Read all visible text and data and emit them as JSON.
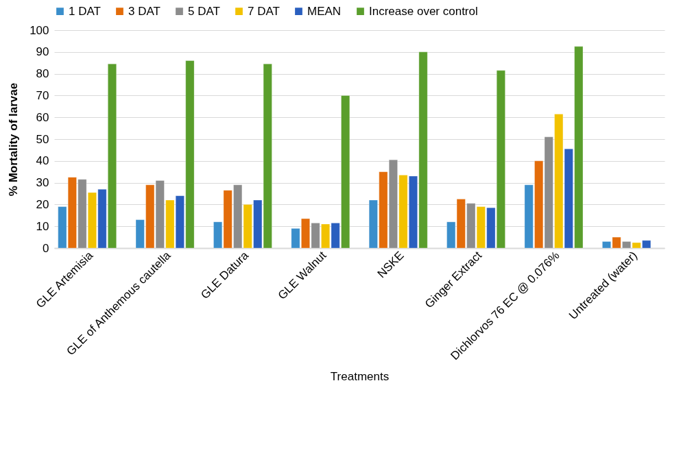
{
  "chart_data": {
    "type": "bar",
    "xlabel": "Treatments",
    "ylabel": "% Mortality  of larvae",
    "categories": [
      "GLE Artemisia",
      "GLE of Anthemous cautella",
      "GLE Datura",
      "GLE Walnut",
      "NSKE",
      "Ginger  Extract",
      "Dichlorvos 76 EC @ 0.076%",
      "Untreated (water)"
    ],
    "series": [
      {
        "name": "1 DAT",
        "color": "#3a8ecb",
        "values": [
          19,
          13,
          12,
          9,
          22,
          12,
          29,
          3
        ]
      },
      {
        "name": "3 DAT",
        "color": "#e36c0a",
        "values": [
          32.5,
          29,
          26.5,
          13.5,
          35,
          22.5,
          40,
          5
        ]
      },
      {
        "name": "5 DAT",
        "color": "#8c8c8c",
        "values": [
          31.5,
          31,
          29,
          11.5,
          40.5,
          20.5,
          51,
          3
        ]
      },
      {
        "name": "7 DAT",
        "color": "#f2c200",
        "values": [
          25.5,
          22,
          20,
          11,
          33.5,
          19,
          61.5,
          2.5
        ]
      },
      {
        "name": "MEAN",
        "color": "#2a5fbf",
        "values": [
          27,
          24,
          22,
          11.5,
          33,
          18.5,
          45.5,
          3.5
        ]
      },
      {
        "name": "Increase over control",
        "color": "#5a9e2c",
        "values": [
          84.5,
          86,
          84.5,
          70,
          90,
          81.5,
          92.5,
          null
        ]
      }
    ],
    "ylim": [
      0,
      100
    ],
    "yticks": [
      0,
      10,
      20,
      30,
      40,
      50,
      60,
      70,
      80,
      90,
      100
    ],
    "grid": "y",
    "legend": "top"
  }
}
